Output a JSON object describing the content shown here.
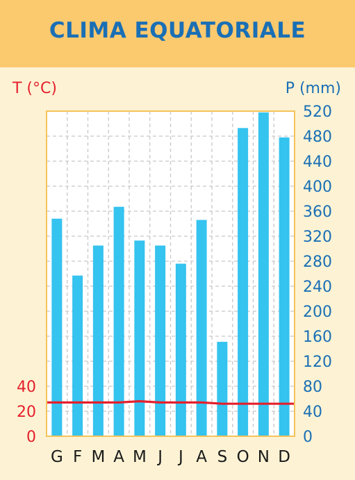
{
  "chart_data": {
    "type": "bar",
    "title": "CLIMA EQUATORIALE",
    "categories": [
      "G",
      "F",
      "M",
      "A",
      "M",
      "J",
      "J",
      "A",
      "S",
      "O",
      "N",
      "D"
    ],
    "series": [
      {
        "name": "P (mm)",
        "type": "bar",
        "axis": "right",
        "color": "#35c3ef",
        "values": [
          348,
          257,
          305,
          367,
          313,
          305,
          276,
          346,
          151,
          493,
          518,
          478
        ]
      },
      {
        "name": "T (°C)",
        "type": "line",
        "axis": "left",
        "color": "#e4202d",
        "values": [
          27,
          27,
          27,
          27,
          28,
          27,
          27,
          27,
          26,
          26,
          26,
          26
        ]
      }
    ],
    "left_axis": {
      "label": "T (°C)",
      "ticks": [
        0,
        20,
        40
      ],
      "ylim": [
        0,
        260
      ],
      "color": "#e4202d"
    },
    "right_axis": {
      "label": "P (mm)",
      "ticks": [
        0,
        40,
        80,
        120,
        160,
        200,
        240,
        280,
        320,
        360,
        400,
        440,
        480,
        520
      ],
      "ylim": [
        0,
        520
      ],
      "color": "#1a6fb5"
    },
    "grid": true,
    "colors": {
      "header": "#fbc96e",
      "background": "#fdf3d4",
      "plot": "#ffffff",
      "grid": "#c8c8c8",
      "title": "#1a6fb5"
    }
  }
}
